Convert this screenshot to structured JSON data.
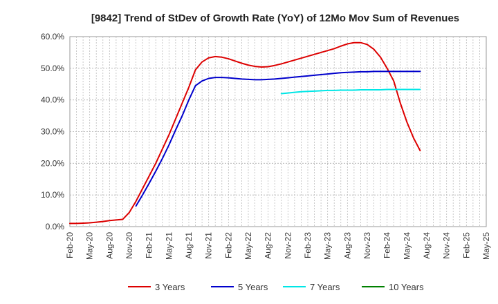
{
  "chart_data": {
    "type": "line",
    "title": "[9842]  Trend of StDev of Growth Rate (YoY) of 12Mo Mov Sum of Revenues",
    "xlabel": "",
    "ylabel": "",
    "ylim": [
      0,
      60
    ],
    "grid": true,
    "legend_position": "bottom",
    "x_ticks": [
      "Feb-20",
      "May-20",
      "Aug-20",
      "Nov-20",
      "Feb-21",
      "May-21",
      "Aug-21",
      "Nov-21",
      "Feb-22",
      "May-22",
      "Aug-22",
      "Nov-22",
      "Feb-23",
      "May-23",
      "Aug-23",
      "Nov-23",
      "Feb-24",
      "May-24",
      "Aug-24",
      "Nov-24",
      "Feb-25",
      "May-25"
    ],
    "y_ticks": [
      0,
      10,
      20,
      30,
      40,
      50,
      60
    ],
    "y_tick_labels": [
      "0.0%",
      "10.0%",
      "20.0%",
      "30.0%",
      "40.0%",
      "50.0%",
      "60.0%"
    ],
    "series": [
      {
        "name": "3 Years",
        "color": "#dd0000",
        "values": [
          1.0,
          1.0,
          1.1,
          1.2,
          1.4,
          1.6,
          1.9,
          2.1,
          2.3,
          4.5,
          8.0,
          12.0,
          16.0,
          20.0,
          24.5,
          29.0,
          34.0,
          39.0,
          44.0,
          49.5,
          52.0,
          53.3,
          53.7,
          53.5,
          53.0,
          52.3,
          51.6,
          51.0,
          50.6,
          50.4,
          50.5,
          50.9,
          51.4,
          52.0,
          52.6,
          53.2,
          53.8,
          54.4,
          55.0,
          55.6,
          56.2,
          57.0,
          57.7,
          58.1,
          58.1,
          57.5,
          56.0,
          53.5,
          50.0,
          46.0,
          39.0,
          33.0,
          28.0,
          24.0
        ]
      },
      {
        "name": "5 Years",
        "color": "#0000cc",
        "values": [
          null,
          null,
          null,
          null,
          null,
          null,
          null,
          null,
          null,
          null,
          6.5,
          10.0,
          13.7,
          17.5,
          21.5,
          25.8,
          30.5,
          35.0,
          40.0,
          44.5,
          46.0,
          46.8,
          47.1,
          47.1,
          47.0,
          46.8,
          46.6,
          46.5,
          46.4,
          46.4,
          46.5,
          46.6,
          46.8,
          47.0,
          47.2,
          47.4,
          47.6,
          47.8,
          48.0,
          48.2,
          48.4,
          48.6,
          48.7,
          48.8,
          48.9,
          48.9,
          49.0,
          49.0,
          49.0,
          49.0,
          49.0,
          49.0,
          49.0,
          49.0
        ]
      },
      {
        "name": "7 Years",
        "color": "#00e6e6",
        "values": [
          null,
          null,
          null,
          null,
          null,
          null,
          null,
          null,
          null,
          null,
          null,
          null,
          null,
          null,
          null,
          null,
          null,
          null,
          null,
          null,
          null,
          null,
          null,
          null,
          null,
          null,
          null,
          null,
          null,
          null,
          null,
          null,
          42.0,
          42.2,
          42.4,
          42.6,
          42.7,
          42.8,
          42.9,
          43.0,
          43.0,
          43.1,
          43.1,
          43.1,
          43.2,
          43.2,
          43.2,
          43.2,
          43.3,
          43.3,
          43.3,
          43.3,
          43.3,
          43.3
        ]
      },
      {
        "name": "10 Years",
        "color": "#008000",
        "values": []
      }
    ]
  }
}
